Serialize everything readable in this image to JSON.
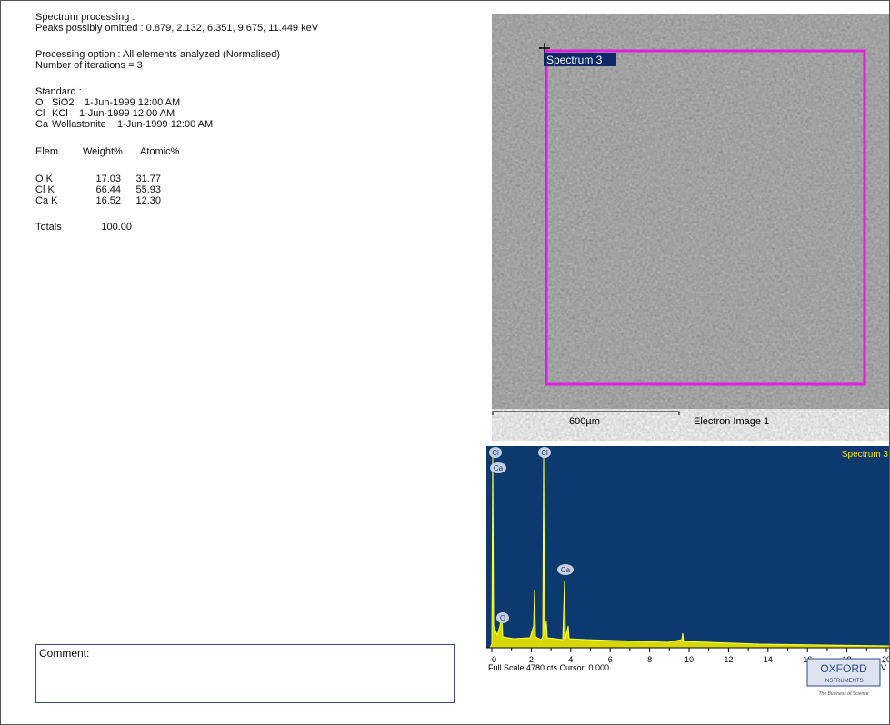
{
  "report": {
    "processing": {
      "heading": "Spectrum processing :",
      "peaks_omitted": "Peaks possibly omitted : 0.879, 2.132, 6.351, 9.675, 11.449 keV"
    },
    "option": "Processing option : All elements analyzed (Normalised)",
    "iterations": "Number of iterations = 3",
    "standard": {
      "heading": "Standard :",
      "rows": [
        [
          "O",
          "SiO2",
          "1-Jun-1999 12:00 AM"
        ],
        [
          "Cl",
          "KCl",
          "1-Jun-1999 12:00 AM"
        ],
        [
          "Ca",
          "Wollastonite",
          "1-Jun-1999 12:00 AM"
        ]
      ]
    },
    "results": {
      "header": [
        "Elem...",
        "Weight%",
        "Atomic%"
      ],
      "rows": [
        [
          "O K",
          "17.03",
          "31.77"
        ],
        [
          "Cl K",
          "66.44",
          "55.93"
        ],
        [
          "Ca K",
          "16.52",
          "12.30"
        ]
      ],
      "totals": [
        "Totals",
        "100.00"
      ]
    }
  },
  "image": {
    "label": "Spectrum 3",
    "scale": "600µm",
    "caption": "Electron Image 1"
  },
  "spectrum": {
    "title": "Spectrum 3",
    "peak_labels": [
      "Cl",
      "Ca",
      "Cl",
      "Ca",
      "O"
    ],
    "xticks": [
      "0",
      "2",
      "4",
      "6",
      "8",
      "10",
      "12",
      "14",
      "16",
      "18",
      "20"
    ],
    "unit": "keV",
    "footer": "Full Scale 4780 cts Cursor: 0.000"
  },
  "comment": {
    "label": "Comment:"
  },
  "logo": {
    "name": "OXFORD",
    "sub": "INSTRUMENTS",
    "tagline": "The Business of Science"
  }
}
